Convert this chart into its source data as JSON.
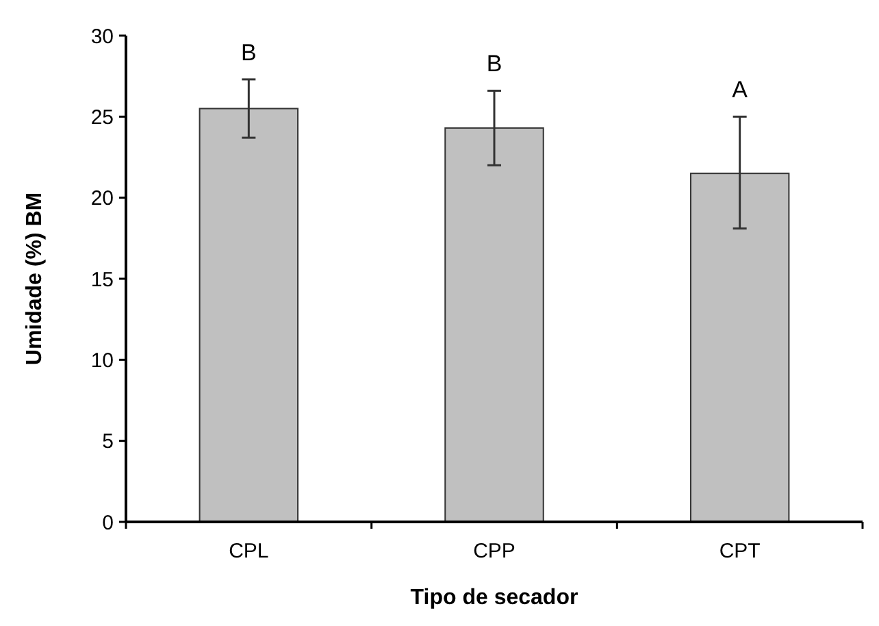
{
  "chart_data": {
    "type": "bar",
    "xlabel": "Tipo de secador",
    "ylabel": "Umidade (%) BM",
    "categories": [
      "CPL",
      "CPP",
      "CPT"
    ],
    "values": [
      25.5,
      24.3,
      21.5
    ],
    "errors": [
      [
        23.7,
        27.3
      ],
      [
        22.0,
        26.6
      ],
      [
        18.1,
        25.0
      ]
    ],
    "color": "#c0c0c0",
    "ylim": [
      0,
      30
    ],
    "yticks": [
      0,
      5,
      10,
      15,
      20,
      25,
      30
    ],
    "annotations": [
      "B",
      "B",
      "A"
    ]
  }
}
